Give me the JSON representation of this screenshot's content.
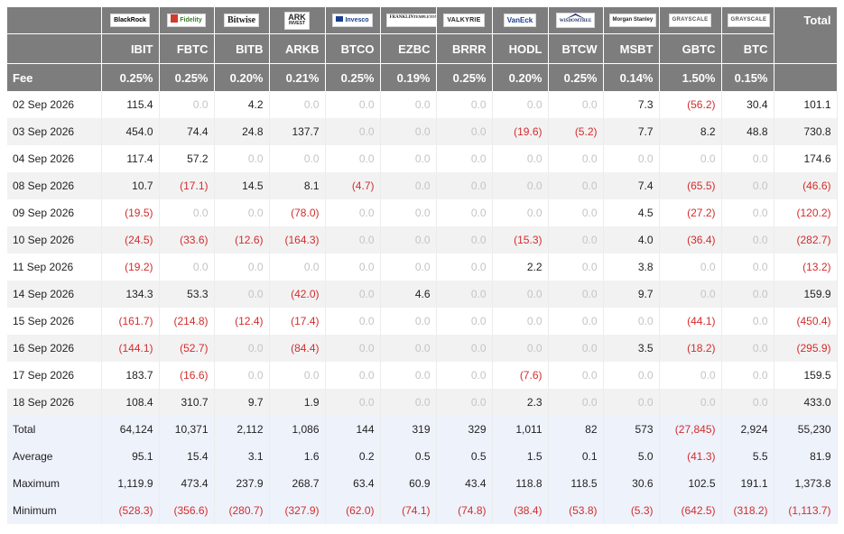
{
  "header": {
    "total_label": "Total",
    "fee_label": "Fee",
    "funds": [
      {
        "ticker": "IBIT",
        "fee": "0.25%",
        "logo": {
          "name": "blackrock-logo",
          "text": "BlackRock"
        }
      },
      {
        "ticker": "FBTC",
        "fee": "0.25%",
        "logo": {
          "name": "fidelity-logo",
          "text": "Fidelity"
        }
      },
      {
        "ticker": "BITB",
        "fee": "0.20%",
        "logo": {
          "name": "bitwise-logo",
          "text": "Bitwise"
        }
      },
      {
        "ticker": "ARKB",
        "fee": "0.21%",
        "logo": {
          "name": "ark-invest-logo",
          "text": "ARK",
          "sub": "INVEST"
        }
      },
      {
        "ticker": "BTCO",
        "fee": "0.25%",
        "logo": {
          "name": "invesco-logo",
          "text": "Invesco"
        }
      },
      {
        "ticker": "EZBC",
        "fee": "0.19%",
        "logo": {
          "name": "franklin-templeton-logo",
          "text": "FRANKLIN",
          "sub": "TEMPLETON"
        }
      },
      {
        "ticker": "BRRR",
        "fee": "0.25%",
        "logo": {
          "name": "valkyrie-logo",
          "text": "VALKYRIE"
        }
      },
      {
        "ticker": "HODL",
        "fee": "0.20%",
        "logo": {
          "name": "vaneck-logo",
          "text": "VanEck"
        }
      },
      {
        "ticker": "BTCW",
        "fee": "0.25%",
        "logo": {
          "name": "wisdomtree-logo",
          "text": "WISDOMTREE"
        }
      },
      {
        "ticker": "MSBT",
        "fee": "0.14%",
        "logo": {
          "name": "morgan-stanley-logo",
          "text": "Morgan Stanley"
        }
      },
      {
        "ticker": "GBTC",
        "fee": "1.50%",
        "logo": {
          "name": "grayscale-logo",
          "text": "GRAYSCALE"
        }
      },
      {
        "ticker": "BTC",
        "fee": "0.15%",
        "logo": {
          "name": "grayscale-logo",
          "text": "GRAYSCALE"
        }
      }
    ]
  },
  "rows": [
    {
      "label": "02 Sep 2026",
      "values": [
        "115.4",
        "0.0",
        "4.2",
        "0.0",
        "0.0",
        "0.0",
        "0.0",
        "0.0",
        "0.0",
        "7.3",
        "(56.2)",
        "30.4"
      ],
      "total": "101.1"
    },
    {
      "label": "03 Sep 2026",
      "values": [
        "454.0",
        "74.4",
        "24.8",
        "137.7",
        "0.0",
        "0.0",
        "0.0",
        "(19.6)",
        "(5.2)",
        "7.7",
        "8.2",
        "48.8"
      ],
      "total": "730.8"
    },
    {
      "label": "04 Sep 2026",
      "values": [
        "117.4",
        "57.2",
        "0.0",
        "0.0",
        "0.0",
        "0.0",
        "0.0",
        "0.0",
        "0.0",
        "0.0",
        "0.0",
        "0.0"
      ],
      "total": "174.6"
    },
    {
      "label": "08 Sep 2026",
      "values": [
        "10.7",
        "(17.1)",
        "14.5",
        "8.1",
        "(4.7)",
        "0.0",
        "0.0",
        "0.0",
        "0.0",
        "7.4",
        "(65.5)",
        "0.0"
      ],
      "total": "(46.6)"
    },
    {
      "label": "09 Sep 2026",
      "values": [
        "(19.5)",
        "0.0",
        "0.0",
        "(78.0)",
        "0.0",
        "0.0",
        "0.0",
        "0.0",
        "0.0",
        "4.5",
        "(27.2)",
        "0.0"
      ],
      "total": "(120.2)"
    },
    {
      "label": "10 Sep 2026",
      "values": [
        "(24.5)",
        "(33.6)",
        "(12.6)",
        "(164.3)",
        "0.0",
        "0.0",
        "0.0",
        "(15.3)",
        "0.0",
        "4.0",
        "(36.4)",
        "0.0"
      ],
      "total": "(282.7)"
    },
    {
      "label": "11 Sep 2026",
      "values": [
        "(19.2)",
        "0.0",
        "0.0",
        "0.0",
        "0.0",
        "0.0",
        "0.0",
        "2.2",
        "0.0",
        "3.8",
        "0.0",
        "0.0"
      ],
      "total": "(13.2)"
    },
    {
      "label": "14 Sep 2026",
      "values": [
        "134.3",
        "53.3",
        "0.0",
        "(42.0)",
        "0.0",
        "4.6",
        "0.0",
        "0.0",
        "0.0",
        "9.7",
        "0.0",
        "0.0"
      ],
      "total": "159.9"
    },
    {
      "label": "15 Sep 2026",
      "values": [
        "(161.7)",
        "(214.8)",
        "(12.4)",
        "(17.4)",
        "0.0",
        "0.0",
        "0.0",
        "0.0",
        "0.0",
        "0.0",
        "(44.1)",
        "0.0"
      ],
      "total": "(450.4)"
    },
    {
      "label": "16 Sep 2026",
      "values": [
        "(144.1)",
        "(52.7)",
        "0.0",
        "(84.4)",
        "0.0",
        "0.0",
        "0.0",
        "0.0",
        "0.0",
        "3.5",
        "(18.2)",
        "0.0"
      ],
      "total": "(295.9)"
    },
    {
      "label": "17 Sep 2026",
      "values": [
        "183.7",
        "(16.6)",
        "0.0",
        "0.0",
        "0.0",
        "0.0",
        "0.0",
        "(7.6)",
        "0.0",
        "0.0",
        "0.0",
        "0.0"
      ],
      "total": "159.5"
    },
    {
      "label": "18 Sep 2026",
      "values": [
        "108.4",
        "310.7",
        "9.7",
        "1.9",
        "0.0",
        "0.0",
        "0.0",
        "2.3",
        "0.0",
        "0.0",
        "0.0",
        "0.0"
      ],
      "total": "433.0"
    }
  ],
  "summary": [
    {
      "label": "Total",
      "values": [
        "64,124",
        "10,371",
        "2,112",
        "1,086",
        "144",
        "319",
        "329",
        "1,011",
        "82",
        "573",
        "(27,845)",
        "2,924"
      ],
      "total": "55,230"
    },
    {
      "label": "Average",
      "values": [
        "95.1",
        "15.4",
        "3.1",
        "1.6",
        "0.2",
        "0.5",
        "0.5",
        "1.5",
        "0.1",
        "5.0",
        "(41.3)",
        "5.5"
      ],
      "total": "81.9"
    },
    {
      "label": "Maximum",
      "values": [
        "1,119.9",
        "473.4",
        "237.9",
        "268.7",
        "63.4",
        "60.9",
        "43.4",
        "118.8",
        "118.5",
        "30.6",
        "102.5",
        "191.1"
      ],
      "total": "1,373.8"
    },
    {
      "label": "Minimum",
      "values": [
        "(528.3)",
        "(356.6)",
        "(280.7)",
        "(327.9)",
        "(62.0)",
        "(74.1)",
        "(74.8)",
        "(38.4)",
        "(53.8)",
        "(5.3)",
        "(642.5)",
        "(318.2)"
      ],
      "total": "(1,113.7)"
    }
  ],
  "colors": {
    "header_bg": "#7d7d7d",
    "negative": "#d42c2c",
    "zero": "#c4c4c4",
    "summary_bg": "#eef2fb",
    "stripe_bg": "#f2f2f2"
  }
}
